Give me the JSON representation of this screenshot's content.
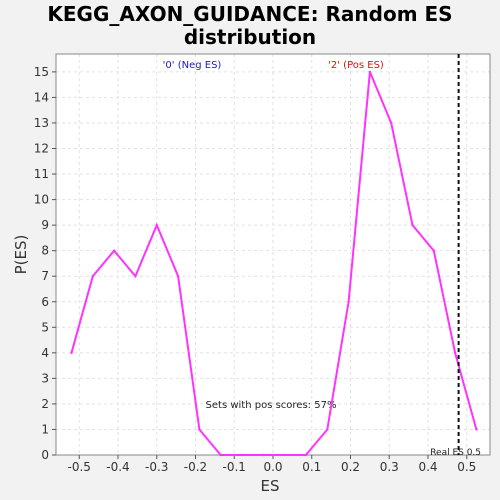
{
  "chart_data": {
    "type": "line",
    "title_line1": "KEGG_AXON_GUIDANCE: Random ES",
    "title_line2": "distribution",
    "xlabel": "ES",
    "ylabel": "P(ES)",
    "xlim": [
      -0.56,
      0.56
    ],
    "ylim": [
      0,
      15.7
    ],
    "x_ticks": [
      -0.5,
      -0.4,
      -0.3,
      -0.2,
      -0.1,
      0.0,
      0.1,
      0.2,
      0.3,
      0.4,
      0.5
    ],
    "x_tick_labels": [
      "-0.5",
      "-0.4",
      "-0.3",
      "-0.2",
      "-0.1",
      "0.0",
      "0.1",
      "0.2",
      "0.3",
      "0.4",
      "0.5"
    ],
    "y_ticks": [
      0,
      1,
      2,
      3,
      4,
      5,
      6,
      7,
      8,
      9,
      10,
      11,
      12,
      13,
      14,
      15
    ],
    "y_tick_labels": [
      "0",
      "1",
      "2",
      "3",
      "4",
      "5",
      "6",
      "7",
      "8",
      "9",
      "10",
      "11",
      "12",
      "13",
      "14",
      "15"
    ],
    "grid": true,
    "series": [
      {
        "color": "#ff33ff",
        "x": [
          -0.52,
          -0.465,
          -0.41,
          -0.355,
          -0.3,
          -0.245,
          -0.19,
          -0.135,
          -0.08,
          -0.025,
          0.03,
          0.085,
          0.14,
          0.195,
          0.25,
          0.305,
          0.36,
          0.415,
          0.47,
          0.525
        ],
        "y": [
          4,
          7,
          8,
          7,
          9,
          7,
          1,
          0,
          0,
          0,
          0,
          0,
          1,
          6,
          15,
          13,
          9,
          8,
          4,
          1
        ]
      }
    ],
    "annotations": {
      "neg_label": "'0' (Neg ES)",
      "neg_color": "#1a1acc",
      "pos_label": "'2' (Pos ES)",
      "pos_color": "#dd1111",
      "pos_scores_text": "Sets with pos scores: 57%",
      "real_es_text": "Real ES 0.5",
      "real_es_value": 0.479
    }
  }
}
